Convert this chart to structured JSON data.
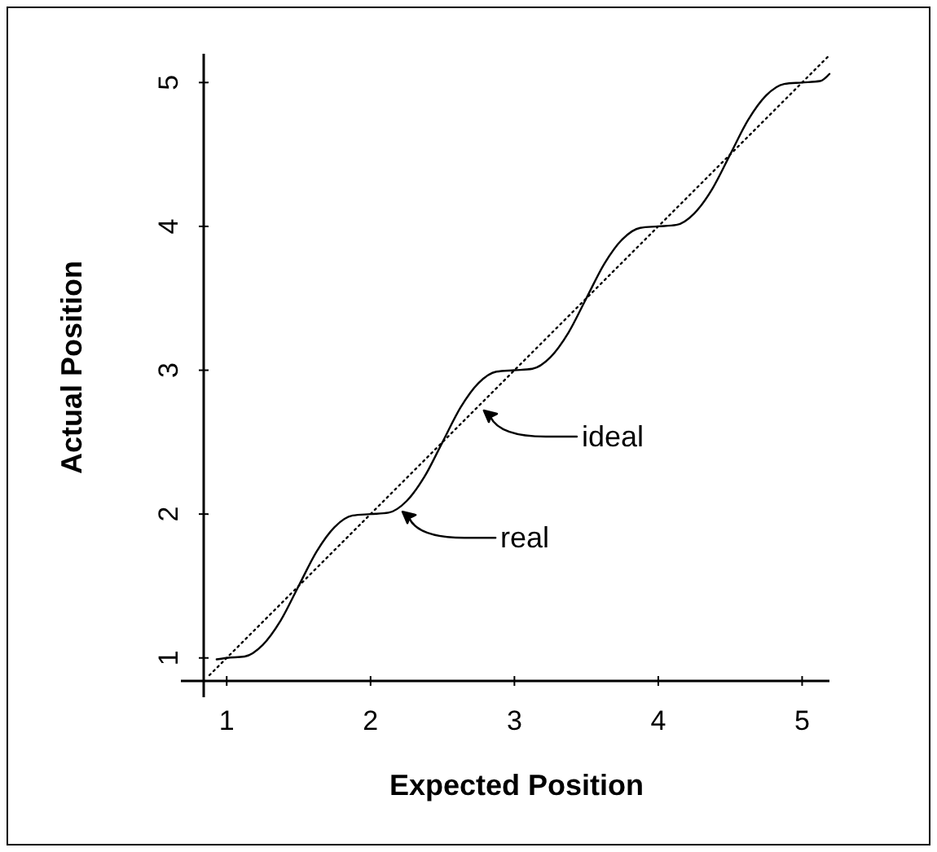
{
  "chart_data": {
    "type": "line",
    "xlabel": "Expected Position",
    "ylabel": "Actual Position",
    "xlim": [
      0.84,
      5.19
    ],
    "ylim": [
      0.84,
      5.2
    ],
    "xticks": [
      1,
      2,
      3,
      4,
      5
    ],
    "yticks": [
      1,
      2,
      3,
      4,
      5
    ],
    "grid": false,
    "marker": "none",
    "legend": "center",
    "series": [
      {
        "name": "real",
        "color": "#000000",
        "line_style": "solid",
        "x": [
          0.93,
          1,
          1.125,
          1.25,
          1.375,
          1.5,
          1.625,
          1.75,
          1.875,
          2,
          2.125,
          2.25,
          2.375,
          2.5,
          2.625,
          2.75,
          2.875,
          3,
          3.125,
          3.25,
          3.375,
          3.5,
          3.625,
          3.75,
          3.875,
          4,
          4.125,
          4.25,
          4.375,
          4.5,
          4.625,
          4.75,
          4.875,
          5,
          5.125,
          5.19
        ],
        "values": [
          0.99,
          1,
          1.01,
          1.09,
          1.26,
          1.5,
          1.74,
          1.91,
          1.99,
          2,
          2.01,
          2.09,
          2.26,
          2.5,
          2.74,
          2.91,
          2.99,
          3,
          3.01,
          3.09,
          3.26,
          3.5,
          3.74,
          3.91,
          3.99,
          4,
          4.01,
          4.09,
          4.26,
          4.5,
          4.74,
          4.91,
          4.99,
          5,
          5.01,
          5.06
        ]
      },
      {
        "name": "ideal",
        "color": "#000000",
        "line_style": "dotted",
        "x": [
          0.88,
          5.19
        ],
        "values": [
          0.88,
          5.19
        ]
      }
    ]
  }
}
